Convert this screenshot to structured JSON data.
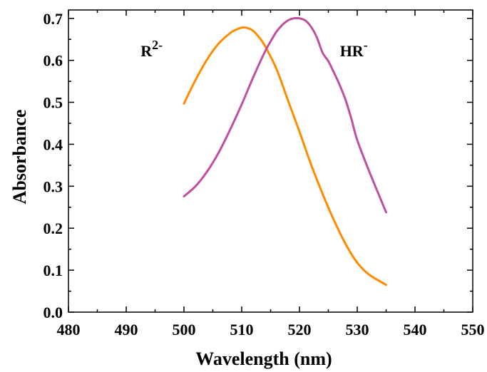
{
  "chart_data": {
    "type": "line",
    "xlabel": "Wavelength (nm)",
    "ylabel": "Absorbance",
    "xlim": [
      480,
      550
    ],
    "ylim": [
      0.0,
      0.72
    ],
    "x_ticks": [
      "480",
      "490",
      "500",
      "510",
      "520",
      "530",
      "540",
      "550"
    ],
    "y_ticks": [
      "0.0",
      "0.1",
      "0.2",
      "0.3",
      "0.4",
      "0.5",
      "0.6",
      "0.7"
    ],
    "grid": false,
    "series": [
      {
        "label_base": "R",
        "label_sup": "2-",
        "color": "#ff8c00",
        "label_at": [
          492.5,
          0.61
        ],
        "x": [
          500,
          502,
          504,
          506,
          508,
          509,
          510,
          511,
          512,
          513,
          514,
          516,
          518,
          520,
          522,
          524,
          526,
          528,
          530,
          532,
          535
        ],
        "y": [
          0.497,
          0.553,
          0.602,
          0.64,
          0.665,
          0.673,
          0.678,
          0.677,
          0.67,
          0.655,
          0.635,
          0.58,
          0.505,
          0.43,
          0.352,
          0.282,
          0.218,
          0.162,
          0.118,
          0.09,
          0.065
        ]
      },
      {
        "label_base": "HR",
        "label_sup": "-",
        "color": "#c0509e",
        "label_at": [
          527,
          0.61
        ],
        "x": [
          500,
          502,
          504,
          506,
          508,
          510,
          512,
          514,
          515,
          516,
          517,
          518,
          519,
          520,
          521,
          522,
          523,
          524,
          525,
          526,
          527,
          528,
          529,
          530,
          532,
          535
        ],
        "y": [
          0.276,
          0.3,
          0.335,
          0.38,
          0.435,
          0.495,
          0.56,
          0.62,
          0.645,
          0.668,
          0.684,
          0.695,
          0.7,
          0.7,
          0.695,
          0.68,
          0.655,
          0.618,
          0.598,
          0.57,
          0.54,
          0.505,
          0.46,
          0.41,
          0.338,
          0.238
        ]
      }
    ]
  }
}
